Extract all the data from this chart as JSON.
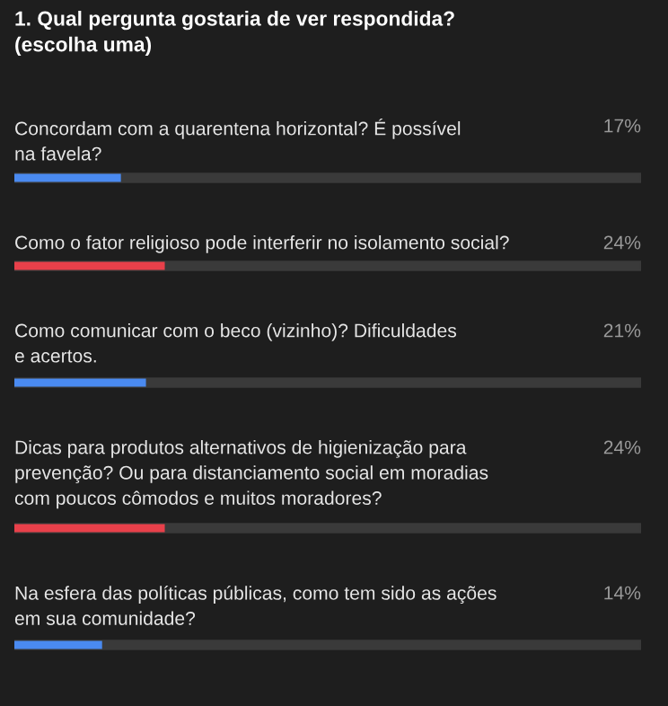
{
  "chart_data": {
    "type": "bar",
    "orientation": "horizontal",
    "title": "1. Qual pergunta gostaria de ver respondida?\n(escolha uma)",
    "categories": [
      "Concordam com a quarentena horizontal? É possível\nna favela?",
      "Como o fator religioso pode interferir no isolamento social?",
      "Como comunicar com o beco (vizinho)? Dificuldades\ne acertos.",
      "Dicas para produtos alternativos de higienização para\nprevenção? Ou para distanciamento social em moradias\ncom poucos cômodos e muitos moradores?",
      "Na esfera das políticas públicas, como tem sido as ações\nem sua comunidade?"
    ],
    "values": [
      17,
      24,
      21,
      24,
      14
    ],
    "value_labels": [
      "17%",
      "24%",
      "21%",
      "24%",
      "14%"
    ],
    "colors": [
      "#4a8af0",
      "#e8404a",
      "#4a8af0",
      "#e8404a",
      "#4a8af0"
    ],
    "xlim": [
      0,
      100
    ]
  }
}
